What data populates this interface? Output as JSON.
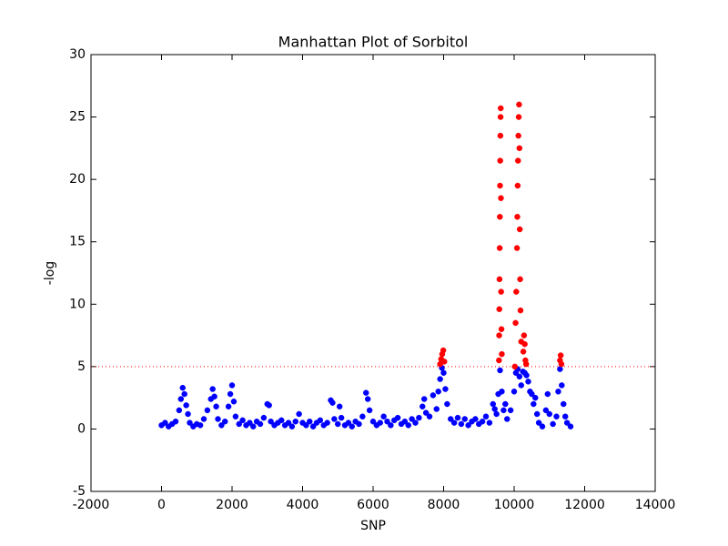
{
  "chart_data": {
    "type": "scatter",
    "title": "Manhattan Plot of Sorbitol",
    "xlabel": "SNP",
    "ylabel": "-log",
    "xlim": [
      -2000,
      14000
    ],
    "xticks": [
      -2000,
      0,
      2000,
      4000,
      6000,
      8000,
      10000,
      12000,
      14000
    ],
    "ylim": [
      -5,
      30
    ],
    "yticks": [
      -5,
      0,
      5,
      10,
      15,
      20,
      25,
      30
    ],
    "grid": false,
    "threshold": {
      "value": 5,
      "color": "#ff0000"
    },
    "series": [
      {
        "color": "#0000ff",
        "x": [
          0,
          100,
          200,
          300,
          400,
          500,
          550,
          600,
          650,
          700,
          750,
          800,
          900,
          1000,
          1100,
          1200,
          1300,
          1400,
          1450,
          1500,
          1550,
          1600,
          1700,
          1800,
          1900,
          1950,
          2000,
          2050,
          2100,
          2200,
          2300,
          2400,
          2500,
          2600,
          2700,
          2800,
          2900,
          3000,
          3050,
          3100,
          3200,
          3300,
          3400,
          3500,
          3600,
          3700,
          3800,
          3900,
          4000,
          4100,
          4200,
          4300,
          4400,
          4500,
          4600,
          4700,
          4800,
          4850,
          4900,
          5000,
          5050,
          5100,
          5200,
          5300,
          5400,
          5500,
          5600,
          5700,
          5800,
          5850,
          5900,
          6000,
          6100,
          6200,
          6300,
          6400,
          6500,
          6600,
          6700,
          6800,
          6900,
          7000,
          7100,
          7200,
          7300,
          7400,
          7450,
          7500,
          7600,
          7700,
          7800,
          7850,
          7900,
          7950,
          8000,
          8050,
          8100,
          8200,
          8300,
          8400,
          8500,
          8600,
          8700,
          8800,
          8900,
          9000,
          9100,
          9200,
          9300,
          9400,
          9450,
          9500,
          9550,
          9600,
          9650,
          9700,
          9750,
          9800,
          9900,
          10000,
          10050,
          10100,
          10150,
          10200,
          10250,
          10300,
          10350,
          10400,
          10450,
          10500,
          10550,
          10600,
          10650,
          10700,
          10800,
          10900,
          10950,
          11000,
          11100,
          11200,
          11250,
          11300,
          11350,
          11400,
          11450,
          11500,
          11600
        ],
        "values": [
          0.3,
          0.5,
          0.2,
          0.4,
          0.6,
          1.5,
          2.4,
          3.3,
          2.8,
          1.9,
          1.2,
          0.5,
          0.2,
          0.4,
          0.3,
          0.8,
          1.5,
          2.4,
          3.2,
          2.6,
          1.8,
          0.8,
          0.3,
          0.6,
          1.8,
          2.8,
          3.5,
          2.2,
          1.0,
          0.4,
          0.7,
          0.3,
          0.5,
          0.2,
          0.6,
          0.4,
          0.9,
          2.0,
          1.9,
          0.6,
          0.3,
          0.5,
          0.7,
          0.3,
          0.5,
          0.2,
          0.6,
          1.2,
          0.5,
          0.3,
          0.6,
          0.2,
          0.5,
          0.7,
          0.3,
          0.5,
          2.3,
          2.1,
          0.8,
          0.4,
          1.8,
          0.9,
          0.3,
          0.5,
          0.2,
          0.6,
          0.4,
          1.0,
          2.9,
          2.4,
          1.5,
          0.6,
          0.3,
          0.5,
          1.0,
          0.6,
          0.3,
          0.7,
          0.9,
          0.4,
          0.6,
          0.3,
          0.8,
          0.5,
          0.9,
          1.8,
          2.4,
          1.3,
          1.0,
          2.7,
          1.6,
          3.0,
          4.0,
          4.9,
          4.5,
          3.2,
          2.0,
          0.8,
          0.5,
          0.9,
          0.4,
          0.8,
          0.3,
          0.6,
          0.8,
          0.4,
          0.6,
          1.0,
          0.5,
          2.0,
          1.6,
          1.2,
          2.8,
          4.7,
          3.0,
          1.5,
          2.0,
          0.8,
          1.5,
          3.0,
          4.5,
          4.8,
          4.2,
          3.5,
          4.6,
          4.5,
          4.3,
          3.8,
          3.0,
          2.8,
          2.0,
          2.5,
          1.2,
          0.5,
          0.2,
          1.5,
          2.8,
          1.2,
          0.4,
          1.0,
          3.0,
          4.8,
          3.5,
          2.0,
          1.0,
          0.5,
          0.2
        ]
      },
      {
        "color": "#ff0000",
        "x": [
          7900,
          7930,
          7960,
          7990,
          8020,
          9570,
          9575,
          9580,
          9585,
          9590,
          9595,
          9600,
          9605,
          9610,
          9615,
          9620,
          9625,
          9630,
          9640,
          9650,
          10020,
          10040,
          10060,
          10080,
          10090,
          10100,
          10110,
          10120,
          10130,
          10140,
          10150,
          10160,
          10170,
          10180,
          10200,
          10260,
          10280,
          10300,
          10320,
          10340,
          11300,
          11320,
          11340
        ],
        "values": [
          5.2,
          5.6,
          6.0,
          6.3,
          5.4,
          5.5,
          7.5,
          9.6,
          12.0,
          14.5,
          17.0,
          19.5,
          21.5,
          23.5,
          25.0,
          25.7,
          18.5,
          11.0,
          8.0,
          6.0,
          5.0,
          8.5,
          11.0,
          14.5,
          17.0,
          19.5,
          21.5,
          23.5,
          25.0,
          26.0,
          22.5,
          16.0,
          12.0,
          9.5,
          7.0,
          6.2,
          7.5,
          6.8,
          5.5,
          5.2,
          5.5,
          5.9,
          5.2
        ]
      }
    ]
  }
}
